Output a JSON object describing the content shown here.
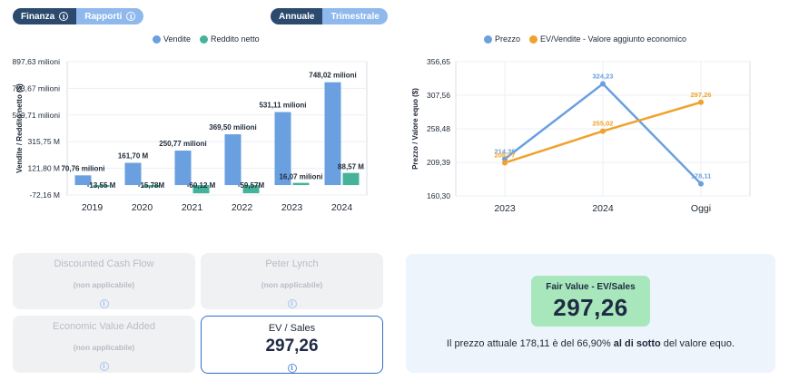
{
  "toggles": {
    "view": {
      "finanza": "Finanza",
      "rapporti": "Rapporti"
    },
    "period": {
      "annuale": "Annuale",
      "trimestrale": "Trimestrale"
    }
  },
  "colors": {
    "blue": "#6a9fe0",
    "green": "#45b39a",
    "orange": "#f0a22c",
    "navy": "#2c4a6e"
  },
  "left_chart_data": {
    "type": "bar",
    "legend": [
      "Vendite",
      "Reddito netto"
    ],
    "ylabel": "Vendite / Reddito netto ($)",
    "y_ticks": [
      "897,63 milioni",
      "703,67 milioni",
      "509,71 milioni",
      "315,75 M",
      "121,80 M",
      "-72,16 M"
    ],
    "y_tick_values": [
      897.63,
      703.67,
      509.71,
      315.75,
      121.8,
      -72.16
    ],
    "ylim": [
      -72.16,
      897.63
    ],
    "categories": [
      "2019",
      "2020",
      "2021",
      "2022",
      "2023",
      "2024"
    ],
    "series": [
      {
        "name": "Vendite",
        "values": [
          70.76,
          161.7,
          250.77,
          369.5,
          531.11,
          748.02
        ],
        "labels": [
          "70,76 milioni",
          "161,70 M",
          "250,77 milioni",
          "369,50 milioni",
          "531,11 milioni",
          "748,02 milioni"
        ]
      },
      {
        "name": "Reddito netto",
        "values": [
          -13.55,
          -15.78,
          -60.12,
          -59.57,
          16.07,
          88.57
        ],
        "labels": [
          "-13,55 M",
          "-15,78M",
          "-60,12 M",
          "-59,57M",
          "16,07 milioni",
          "88,57 M"
        ]
      }
    ]
  },
  "right_chart_data": {
    "type": "line",
    "legend": [
      "Prezzo",
      "EV/Vendite - Valore aggiunto economico"
    ],
    "ylabel": "Prezzo / Valore equo ($)",
    "y_ticks": [
      "356,65",
      "307,56",
      "258,48",
      "209,39",
      "160,30"
    ],
    "y_tick_values": [
      356.65,
      307.56,
      258.48,
      209.39,
      160.3
    ],
    "ylim": [
      160.3,
      356.65
    ],
    "categories": [
      "2023",
      "2024",
      "Oggi"
    ],
    "series": [
      {
        "name": "Prezzo",
        "values": [
          214.35,
          324.23,
          178.11
        ],
        "labels": [
          "214,35",
          "324,23",
          "178,11"
        ]
      },
      {
        "name": "EV/Vendite - Valore aggiunto economico",
        "values": [
          208.77,
          255.02,
          297.26
        ],
        "labels": [
          "208,77",
          "255,02",
          "297,26"
        ]
      }
    ]
  },
  "models": {
    "dcf": {
      "title": "Discounted Cash Flow",
      "status": "(non applicabile)"
    },
    "lynch": {
      "title": "Peter Lynch",
      "status": "(non applicabile)"
    },
    "eva": {
      "title": "Economic Value Added",
      "status": "(non applicabile)"
    },
    "evsales": {
      "title": "EV / Sales",
      "value": "297,26"
    }
  },
  "fair_value": {
    "label": "Fair Value - EV/Sales",
    "value": "297,26",
    "sentence_pre": "Il prezzo attuale 178,11 è del  66,90%",
    "sentence_bold": "al di sotto",
    "sentence_post": "del valore equo."
  }
}
